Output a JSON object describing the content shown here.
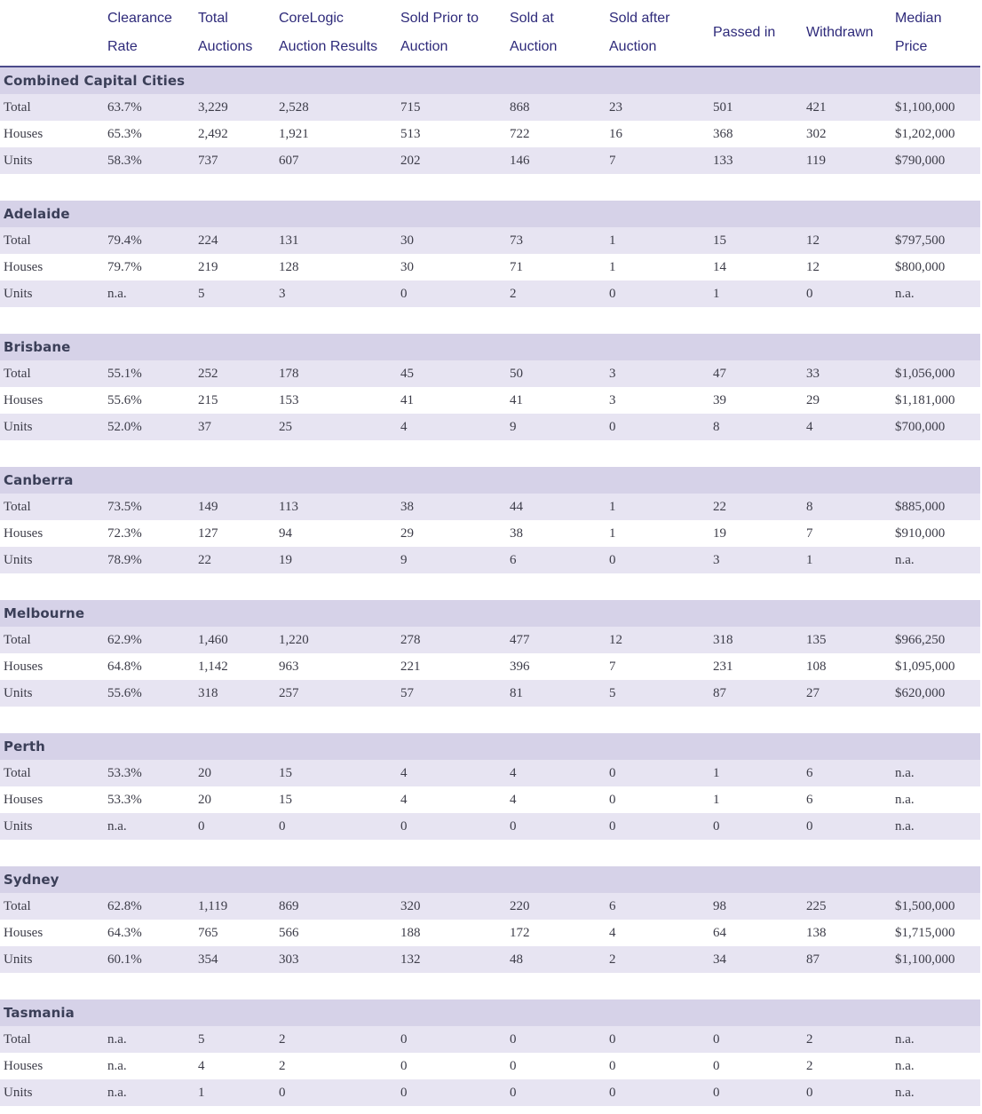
{
  "columns": [
    "",
    "Clearance Rate",
    "Total Auctions",
    "CoreLogic Auction Results",
    "Sold Prior to Auction",
    "Sold at Auction",
    "Sold after Auction",
    "Passed in",
    "Withdrawn",
    "Median Price"
  ],
  "header_lines": [
    [
      "",
      ""
    ],
    [
      "Clearance",
      "Rate"
    ],
    [
      "Total",
      "Auctions"
    ],
    [
      "CoreLogic",
      "Auction Results"
    ],
    [
      "Sold Prior to",
      "Auction"
    ],
    [
      "Sold at",
      "Auction"
    ],
    [
      "Sold after",
      "Auction"
    ],
    [
      "Passed in",
      ""
    ],
    [
      "Withdrawn",
      ""
    ],
    [
      "Median",
      "Price"
    ]
  ],
  "regions": [
    {
      "name": "Combined Capital Cities",
      "rows": [
        [
          "Total",
          "63.7%",
          "3,229",
          "2,528",
          "715",
          "868",
          "23",
          "501",
          "421",
          "$1,100,000"
        ],
        [
          "Houses",
          "65.3%",
          "2,492",
          "1,921",
          "513",
          "722",
          "16",
          "368",
          "302",
          "$1,202,000"
        ],
        [
          "Units",
          "58.3%",
          "737",
          "607",
          "202",
          "146",
          "7",
          "133",
          "119",
          "$790,000"
        ]
      ]
    },
    {
      "name": "Adelaide",
      "rows": [
        [
          "Total",
          "79.4%",
          "224",
          "131",
          "30",
          "73",
          "1",
          "15",
          "12",
          "$797,500"
        ],
        [
          "Houses",
          "79.7%",
          "219",
          "128",
          "30",
          "71",
          "1",
          "14",
          "12",
          "$800,000"
        ],
        [
          "Units",
          "n.a.",
          "5",
          "3",
          "0",
          "2",
          "0",
          "1",
          "0",
          "n.a."
        ]
      ]
    },
    {
      "name": "Brisbane",
      "rows": [
        [
          "Total",
          "55.1%",
          "252",
          "178",
          "45",
          "50",
          "3",
          "47",
          "33",
          "$1,056,000"
        ],
        [
          "Houses",
          "55.6%",
          "215",
          "153",
          "41",
          "41",
          "3",
          "39",
          "29",
          "$1,181,000"
        ],
        [
          "Units",
          "52.0%",
          "37",
          "25",
          "4",
          "9",
          "0",
          "8",
          "4",
          "$700,000"
        ]
      ]
    },
    {
      "name": "Canberra",
      "rows": [
        [
          "Total",
          "73.5%",
          "149",
          "113",
          "38",
          "44",
          "1",
          "22",
          "8",
          "$885,000"
        ],
        [
          "Houses",
          "72.3%",
          "127",
          "94",
          "29",
          "38",
          "1",
          "19",
          "7",
          "$910,000"
        ],
        [
          "Units",
          "78.9%",
          "22",
          "19",
          "9",
          "6",
          "0",
          "3",
          "1",
          "n.a."
        ]
      ]
    },
    {
      "name": "Melbourne",
      "rows": [
        [
          "Total",
          "62.9%",
          "1,460",
          "1,220",
          "278",
          "477",
          "12",
          "318",
          "135",
          "$966,250"
        ],
        [
          "Houses",
          "64.8%",
          "1,142",
          "963",
          "221",
          "396",
          "7",
          "231",
          "108",
          "$1,095,000"
        ],
        [
          "Units",
          "55.6%",
          "318",
          "257",
          "57",
          "81",
          "5",
          "87",
          "27",
          "$620,000"
        ]
      ]
    },
    {
      "name": "Perth",
      "rows": [
        [
          "Total",
          "53.3%",
          "20",
          "15",
          "4",
          "4",
          "0",
          "1",
          "6",
          "n.a."
        ],
        [
          "Houses",
          "53.3%",
          "20",
          "15",
          "4",
          "4",
          "0",
          "1",
          "6",
          "n.a."
        ],
        [
          "Units",
          "n.a.",
          "0",
          "0",
          "0",
          "0",
          "0",
          "0",
          "0",
          "n.a."
        ]
      ]
    },
    {
      "name": "Sydney",
      "rows": [
        [
          "Total",
          "62.8%",
          "1,119",
          "869",
          "320",
          "220",
          "6",
          "98",
          "225",
          "$1,500,000"
        ],
        [
          "Houses",
          "64.3%",
          "765",
          "566",
          "188",
          "172",
          "4",
          "64",
          "138",
          "$1,715,000"
        ],
        [
          "Units",
          "60.1%",
          "354",
          "303",
          "132",
          "48",
          "2",
          "34",
          "87",
          "$1,100,000"
        ]
      ]
    },
    {
      "name": "Tasmania",
      "rows": [
        [
          "Total",
          "n.a.",
          "5",
          "2",
          "0",
          "0",
          "0",
          "0",
          "2",
          "n.a."
        ],
        [
          "Houses",
          "n.a.",
          "4",
          "2",
          "0",
          "0",
          "0",
          "0",
          "2",
          "n.a."
        ],
        [
          "Units",
          "n.a.",
          "1",
          "0",
          "0",
          "0",
          "0",
          "0",
          "0",
          "n.a."
        ]
      ]
    }
  ]
}
